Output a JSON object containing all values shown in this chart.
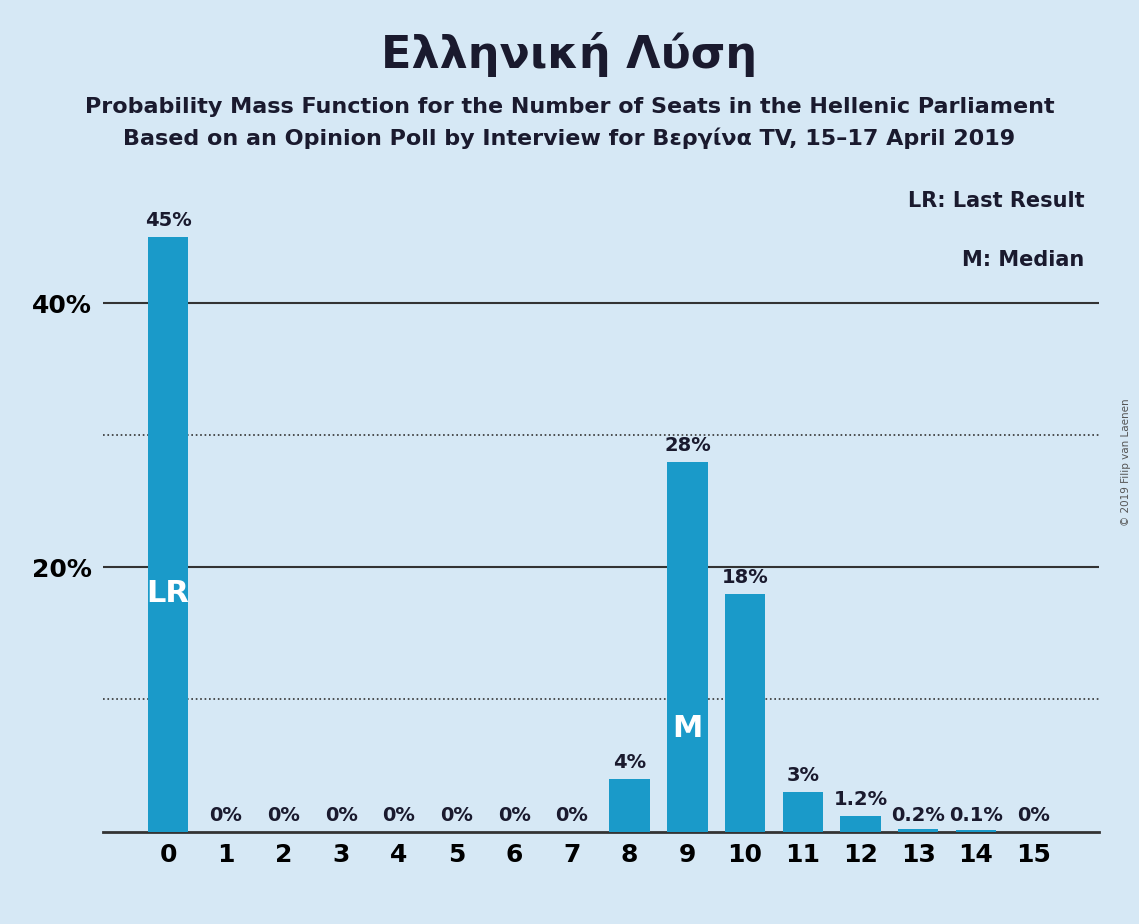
{
  "title": "Ελληνική Λύση",
  "subtitle_line1": "Probability Mass Function for the Number of Seats in the Hellenic Parliament",
  "subtitle_line2": "Based on an Opinion Poll by Interview for Βεργίνα TV, 15–17 April 2019",
  "copyright": "© 2019 Filip van Laenen",
  "categories": [
    0,
    1,
    2,
    3,
    4,
    5,
    6,
    7,
    8,
    9,
    10,
    11,
    12,
    13,
    14,
    15
  ],
  "values": [
    45,
    0,
    0,
    0,
    0,
    0,
    0,
    0,
    4,
    28,
    18,
    3,
    1.2,
    0.2,
    0.1,
    0
  ],
  "bar_color": "#1a9ac9",
  "background_color": "#d6e8f5",
  "bar_labels": [
    "45%",
    "0%",
    "0%",
    "0%",
    "0%",
    "0%",
    "0%",
    "0%",
    "4%",
    "28%",
    "18%",
    "3%",
    "1.2%",
    "0.2%",
    "0.1%",
    "0%"
  ],
  "lr_bar_index": 0,
  "median_bar_index": 9,
  "lr_label": "LR",
  "median_label": "M",
  "legend_lr": "LR: Last Result",
  "legend_m": "M: Median",
  "ylim": [
    0,
    50
  ],
  "yticks": [
    0,
    20,
    40
  ],
  "ytick_labels": [
    "",
    "20%",
    "40%"
  ],
  "dotted_lines": [
    10,
    30
  ],
  "solid_lines": [
    20,
    40
  ],
  "title_fontsize": 32,
  "subtitle_fontsize": 16,
  "axis_fontsize": 18,
  "bar_label_fontsize": 14,
  "inside_label_fontsize": 22
}
